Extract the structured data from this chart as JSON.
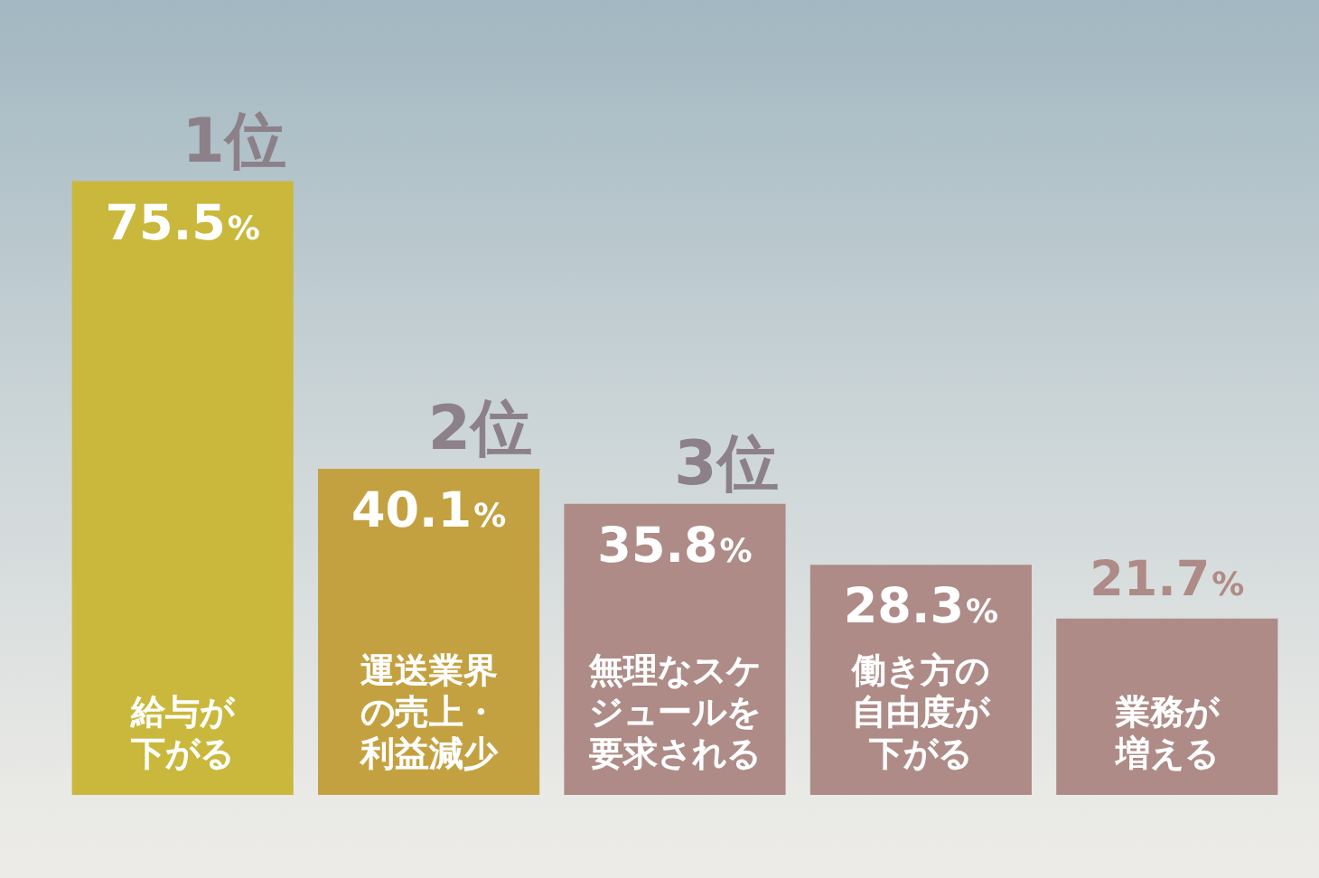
{
  "chart_data": {
    "type": "bar",
    "categories": [
      "給与が下がる",
      "運送業界の売上・利益減少",
      "無理なスケジュールを要求される",
      "働き方の自由度が下がる",
      "業務が増える"
    ],
    "values": [
      75.5,
      40.1,
      35.8,
      28.3,
      21.7
    ],
    "value_labels": [
      "75.5%",
      "40.1%",
      "35.8%",
      "28.3%",
      "21.7%"
    ],
    "colors": [
      "#c9b83c",
      "#c4a140",
      "#ae8b87",
      "#ae8b87",
      "#ae8b87"
    ],
    "annotations": [
      {
        "text": "1位",
        "x": "給与が下がる",
        "y": 75.5
      },
      {
        "text": "2位",
        "x": "運送業界の売上・利益減少",
        "y": 40.1
      },
      {
        "text": "3位",
        "x": "無理なスケジュールを要求される",
        "y": 35.8
      }
    ]
  }
}
